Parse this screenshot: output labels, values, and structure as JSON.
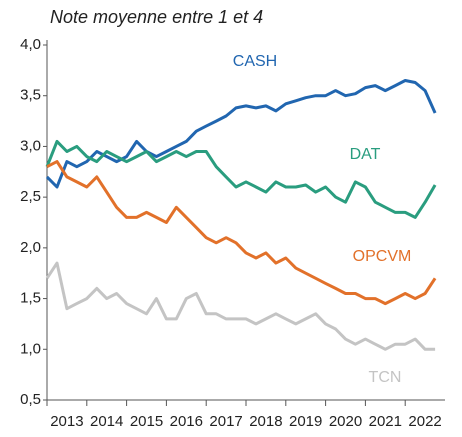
{
  "chart_data": {
    "type": "line",
    "title": "Note moyenne entre 1 et 4",
    "x": [
      2013.0,
      2013.25,
      2013.5,
      2013.75,
      2014.0,
      2014.25,
      2014.5,
      2014.75,
      2015.0,
      2015.25,
      2015.5,
      2015.75,
      2016.0,
      2016.25,
      2016.5,
      2016.75,
      2017.0,
      2017.25,
      2017.5,
      2017.75,
      2018.0,
      2018.25,
      2018.5,
      2018.75,
      2019.0,
      2019.25,
      2019.5,
      2019.75,
      2020.0,
      2020.25,
      2020.5,
      2020.75,
      2021.0,
      2021.25,
      2021.5,
      2021.75,
      2022.0,
      2022.25,
      2022.5,
      2022.75
    ],
    "series": [
      {
        "name": "CASH",
        "color": "#2166b0",
        "values": [
          2.7,
          2.6,
          2.85,
          2.8,
          2.85,
          2.95,
          2.9,
          2.85,
          2.9,
          3.05,
          2.95,
          2.9,
          2.95,
          3.0,
          3.05,
          3.15,
          3.2,
          3.25,
          3.3,
          3.38,
          3.4,
          3.38,
          3.4,
          3.35,
          3.42,
          3.45,
          3.48,
          3.5,
          3.5,
          3.55,
          3.5,
          3.52,
          3.58,
          3.6,
          3.55,
          3.6,
          3.65,
          3.63,
          3.55,
          3.33
        ]
      },
      {
        "name": "DAT",
        "color": "#2a9d7f",
        "values": [
          2.8,
          3.05,
          2.95,
          3.0,
          2.9,
          2.85,
          2.95,
          2.9,
          2.85,
          2.9,
          2.95,
          2.85,
          2.9,
          2.95,
          2.9,
          2.95,
          2.95,
          2.8,
          2.7,
          2.6,
          2.65,
          2.6,
          2.55,
          2.65,
          2.6,
          2.6,
          2.62,
          2.55,
          2.6,
          2.5,
          2.45,
          2.65,
          2.6,
          2.45,
          2.4,
          2.35,
          2.35,
          2.3,
          2.45,
          2.62
        ]
      },
      {
        "name": "OPCVM",
        "color": "#e2712a",
        "values": [
          2.8,
          2.85,
          2.7,
          2.65,
          2.6,
          2.7,
          2.55,
          2.4,
          2.3,
          2.3,
          2.35,
          2.3,
          2.25,
          2.4,
          2.3,
          2.2,
          2.1,
          2.05,
          2.1,
          2.05,
          1.95,
          1.9,
          1.95,
          1.85,
          1.9,
          1.8,
          1.75,
          1.7,
          1.65,
          1.6,
          1.55,
          1.55,
          1.5,
          1.5,
          1.45,
          1.5,
          1.55,
          1.5,
          1.55,
          1.7
        ]
      },
      {
        "name": "TCN",
        "color": "#c4c4c4",
        "values": [
          1.7,
          1.85,
          1.4,
          1.45,
          1.5,
          1.6,
          1.5,
          1.55,
          1.45,
          1.4,
          1.35,
          1.5,
          1.3,
          1.3,
          1.5,
          1.55,
          1.35,
          1.35,
          1.3,
          1.3,
          1.3,
          1.25,
          1.3,
          1.35,
          1.3,
          1.25,
          1.3,
          1.35,
          1.25,
          1.2,
          1.1,
          1.05,
          1.1,
          1.05,
          1.0,
          1.05,
          1.05,
          1.1,
          1.0,
          1.0
        ]
      }
    ],
    "xlim": [
      2013,
      2023
    ],
    "xticks": [
      2013,
      2014,
      2015,
      2016,
      2017,
      2018,
      2019,
      2020,
      2021,
      2022
    ],
    "ylim": [
      0.5,
      4.0
    ],
    "yticks": [
      {
        "value": 0.5,
        "label": "0,5"
      },
      {
        "value": 1.0,
        "label": "1,0"
      },
      {
        "value": 1.5,
        "label": "1,5"
      },
      {
        "value": 2.0,
        "label": "2,0"
      },
      {
        "value": 2.5,
        "label": "2,5"
      },
      {
        "value": 3.0,
        "label": "3,0"
      },
      {
        "value": 3.5,
        "label": "3,5"
      },
      {
        "value": 4.0,
        "label": "4,0"
      }
    ],
    "grid": false
  }
}
